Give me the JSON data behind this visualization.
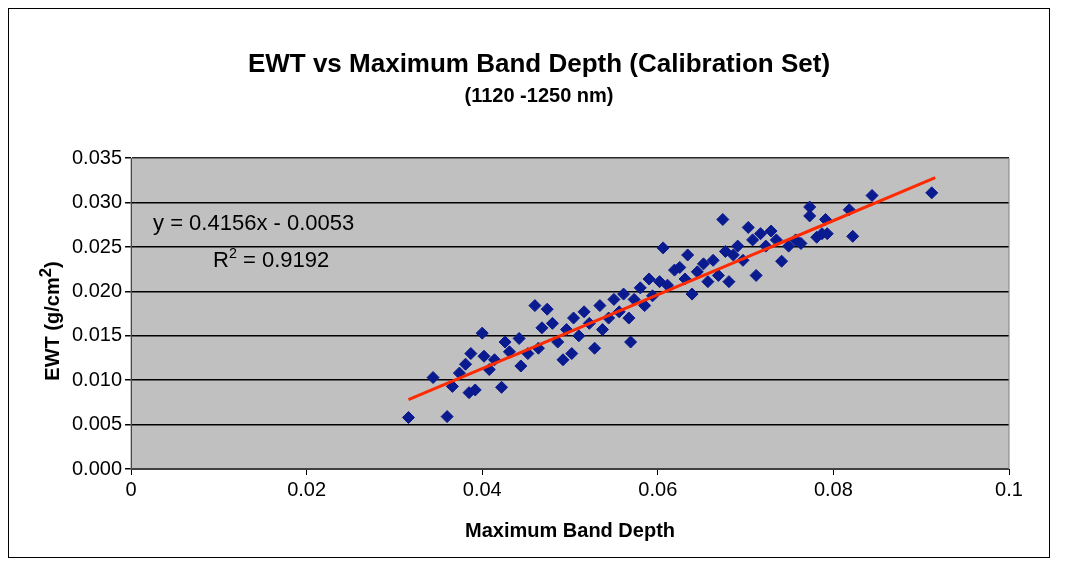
{
  "chart_data": {
    "type": "scatter",
    "title": "EWT vs Maximum Band Depth (Calibration Set)",
    "subtitle": "(1120 -1250 nm)",
    "xlabel": "Maximum Band Depth",
    "ylabel": "EWT (g/cm$^{2}$)",
    "x": [
      0.0316,
      0.036,
      0.0344,
      0.0366,
      0.0374,
      0.0381,
      0.0387,
      0.0385,
      0.0392,
      0.04,
      0.0402,
      0.0408,
      0.0414,
      0.0422,
      0.0426,
      0.0431,
      0.0442,
      0.0444,
      0.0452,
      0.046,
      0.0464,
      0.0474,
      0.0468,
      0.048,
      0.0486,
      0.0492,
      0.0496,
      0.0502,
      0.0504,
      0.051,
      0.0516,
      0.0522,
      0.0528,
      0.0534,
      0.0537,
      0.0544,
      0.055,
      0.0556,
      0.0561,
      0.0567,
      0.0569,
      0.0573,
      0.058,
      0.0585,
      0.059,
      0.0594,
      0.0602,
      0.0606,
      0.0611,
      0.0619,
      0.0625,
      0.0631,
      0.0634,
      0.0639,
      0.0645,
      0.0652,
      0.0657,
      0.0663,
      0.0669,
      0.0674,
      0.0677,
      0.0681,
      0.0686,
      0.0691,
      0.0697,
      0.0703,
      0.0708,
      0.0712,
      0.0717,
      0.0723,
      0.0729,
      0.0735,
      0.0741,
      0.0749,
      0.0757,
      0.0763,
      0.0773,
      0.0773,
      0.0781,
      0.0787,
      0.0791,
      0.0793,
      0.0818,
      0.0822,
      0.0844,
      0.0912
    ],
    "series": [
      {
        "type": "scatter",
        "color": "#0a1a8f",
        "values": [
          0.0058,
          0.0059,
          0.0103,
          0.0093,
          0.0108,
          0.0118,
          0.013,
          0.0086,
          0.0089,
          0.0153,
          0.0127,
          0.0112,
          0.0123,
          0.0092,
          0.0143,
          0.0132,
          0.0147,
          0.0116,
          0.013,
          0.0184,
          0.0136,
          0.018,
          0.0159,
          0.0164,
          0.0143,
          0.0123,
          0.0157,
          0.013,
          0.017,
          0.015,
          0.0177,
          0.0164,
          0.0136,
          0.0184,
          0.0157,
          0.017,
          0.0191,
          0.0177,
          0.0197,
          0.017,
          0.0143,
          0.0191,
          0.0204,
          0.0184,
          0.0214,
          0.0195,
          0.0211,
          0.0249,
          0.0207,
          0.0224,
          0.0227,
          0.0214,
          0.0241,
          0.0197,
          0.0222,
          0.0231,
          0.0211,
          0.0235,
          0.0218,
          0.0281,
          0.0245,
          0.0211,
          0.0241,
          0.0251,
          0.0235,
          0.0272,
          0.0258,
          0.0218,
          0.0265,
          0.0251,
          0.0268,
          0.0258,
          0.0234,
          0.0251,
          0.0258,
          0.0254,
          0.0295,
          0.0285,
          0.0261,
          0.0265,
          0.0281,
          0.0265,
          0.0292,
          0.0262,
          0.0308,
          0.0311
        ]
      },
      {
        "type": "line",
        "color": "#ff2a00",
        "marker": "none",
        "x": [
          0.0316,
          0.0916
        ],
        "values": [
          0.0078,
          0.0328
        ]
      }
    ],
    "xlim": [
      0,
      0.1
    ],
    "xticks": [
      0,
      0.02,
      0.04,
      0.06,
      0.08,
      0.1
    ],
    "ylim": [
      0,
      0.035
    ],
    "yticks": [
      {
        "value": 0,
        "label": "0.000"
      },
      {
        "value": 0.005,
        "label": "0.005"
      },
      {
        "value": 0.01,
        "label": "0.010"
      },
      {
        "value": 0.015,
        "label": "0.015"
      },
      {
        "value": 0.02,
        "label": "0.020"
      },
      {
        "value": 0.025,
        "label": "0.025"
      },
      {
        "value": 0.03,
        "label": "0.030"
      },
      {
        "value": 0.035,
        "label": "0.035"
      }
    ],
    "grid": "y",
    "legend": false,
    "marker": "diamond",
    "annotations": [
      "y = 0.4156x - 0.0053",
      "R$^{2}$ = 0.9192"
    ]
  }
}
